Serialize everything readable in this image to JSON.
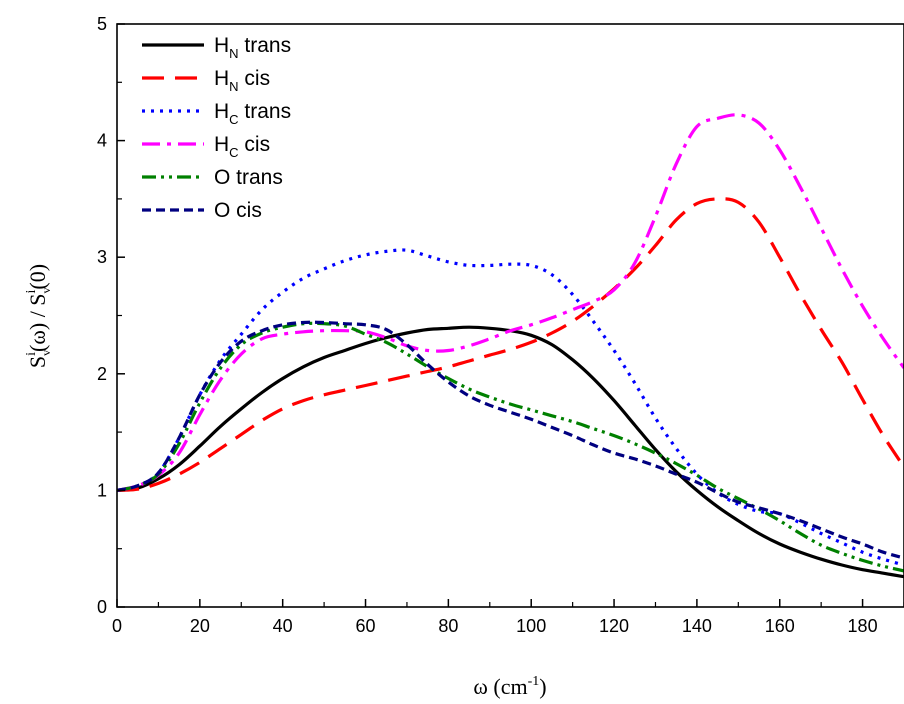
{
  "chart_data": {
    "type": "line",
    "xlabel": {
      "base": "ω (cm",
      "sup": "-1",
      "tail": ")"
    },
    "ylabel": {
      "parts": [
        "S",
        "v",
        "i",
        "(ω) / S",
        "v",
        "i",
        "(0)"
      ]
    },
    "xlim": [
      0,
      190
    ],
    "ylim": [
      0,
      5
    ],
    "xticks": [
      0,
      20,
      40,
      60,
      80,
      100,
      120,
      140,
      160,
      180
    ],
    "yticks": [
      0,
      1,
      2,
      3,
      4,
      5
    ],
    "grid": false,
    "legend_position": "top-left",
    "series": [
      {
        "name": "H_N trans",
        "legend_main": "H",
        "legend_sub": "N",
        "legend_tail": " trans",
        "color": "#000000",
        "dash": "solid",
        "points": [
          [
            0,
            1.0
          ],
          [
            5,
            1.02
          ],
          [
            10,
            1.1
          ],
          [
            15,
            1.22
          ],
          [
            20,
            1.38
          ],
          [
            25,
            1.55
          ],
          [
            30,
            1.7
          ],
          [
            35,
            1.84
          ],
          [
            40,
            1.96
          ],
          [
            45,
            2.06
          ],
          [
            50,
            2.14
          ],
          [
            55,
            2.2
          ],
          [
            60,
            2.26
          ],
          [
            65,
            2.31
          ],
          [
            70,
            2.35
          ],
          [
            75,
            2.38
          ],
          [
            80,
            2.39
          ],
          [
            85,
            2.4
          ],
          [
            90,
            2.39
          ],
          [
            95,
            2.37
          ],
          [
            100,
            2.33
          ],
          [
            105,
            2.25
          ],
          [
            110,
            2.12
          ],
          [
            115,
            1.96
          ],
          [
            120,
            1.77
          ],
          [
            125,
            1.56
          ],
          [
            130,
            1.35
          ],
          [
            135,
            1.16
          ],
          [
            140,
            1.0
          ],
          [
            145,
            0.86
          ],
          [
            150,
            0.74
          ],
          [
            155,
            0.63
          ],
          [
            160,
            0.54
          ],
          [
            165,
            0.47
          ],
          [
            170,
            0.41
          ],
          [
            175,
            0.36
          ],
          [
            180,
            0.32
          ],
          [
            185,
            0.29
          ],
          [
            190,
            0.26
          ]
        ]
      },
      {
        "name": "H_N cis",
        "legend_main": "H",
        "legend_sub": "N",
        "legend_tail": " cis",
        "color": "#ff0000",
        "dash": "dashed",
        "points": [
          [
            0,
            1.0
          ],
          [
            5,
            1.01
          ],
          [
            10,
            1.06
          ],
          [
            15,
            1.14
          ],
          [
            20,
            1.24
          ],
          [
            25,
            1.36
          ],
          [
            30,
            1.48
          ],
          [
            35,
            1.6
          ],
          [
            40,
            1.7
          ],
          [
            45,
            1.77
          ],
          [
            50,
            1.82
          ],
          [
            55,
            1.86
          ],
          [
            60,
            1.9
          ],
          [
            65,
            1.94
          ],
          [
            70,
            1.98
          ],
          [
            75,
            2.02
          ],
          [
            80,
            2.06
          ],
          [
            85,
            2.11
          ],
          [
            90,
            2.16
          ],
          [
            95,
            2.21
          ],
          [
            100,
            2.27
          ],
          [
            105,
            2.35
          ],
          [
            110,
            2.45
          ],
          [
            115,
            2.58
          ],
          [
            120,
            2.73
          ],
          [
            125,
            2.9
          ],
          [
            130,
            3.1
          ],
          [
            135,
            3.32
          ],
          [
            140,
            3.46
          ],
          [
            145,
            3.5
          ],
          [
            150,
            3.47
          ],
          [
            155,
            3.3
          ],
          [
            160,
            3.0
          ],
          [
            165,
            2.68
          ],
          [
            170,
            2.38
          ],
          [
            175,
            2.1
          ],
          [
            180,
            1.78
          ],
          [
            185,
            1.47
          ],
          [
            190,
            1.2
          ]
        ]
      },
      {
        "name": "H_C trans",
        "legend_main": "H",
        "legend_sub": "C",
        "legend_tail": " trans",
        "color": "#0000ff",
        "dash": "dotted",
        "points": [
          [
            0,
            1.0
          ],
          [
            5,
            1.04
          ],
          [
            10,
            1.15
          ],
          [
            15,
            1.45
          ],
          [
            20,
            1.82
          ],
          [
            25,
            2.12
          ],
          [
            30,
            2.34
          ],
          [
            35,
            2.55
          ],
          [
            40,
            2.7
          ],
          [
            45,
            2.82
          ],
          [
            50,
            2.9
          ],
          [
            55,
            2.97
          ],
          [
            60,
            3.02
          ],
          [
            65,
            3.05
          ],
          [
            70,
            3.06
          ],
          [
            75,
            3.01
          ],
          [
            80,
            2.96
          ],
          [
            85,
            2.93
          ],
          [
            90,
            2.93
          ],
          [
            95,
            2.94
          ],
          [
            100,
            2.93
          ],
          [
            105,
            2.85
          ],
          [
            110,
            2.68
          ],
          [
            115,
            2.45
          ],
          [
            120,
            2.2
          ],
          [
            125,
            1.92
          ],
          [
            130,
            1.62
          ],
          [
            135,
            1.36
          ],
          [
            140,
            1.14
          ],
          [
            145,
            0.98
          ],
          [
            150,
            0.88
          ],
          [
            155,
            0.82
          ],
          [
            160,
            0.8
          ],
          [
            165,
            0.72
          ],
          [
            170,
            0.63
          ],
          [
            175,
            0.55
          ],
          [
            180,
            0.47
          ],
          [
            185,
            0.41
          ],
          [
            190,
            0.36
          ]
        ]
      },
      {
        "name": "H_C cis",
        "legend_main": "H",
        "legend_sub": "C",
        "legend_tail": " cis",
        "color": "#ff00ff",
        "dash": "dashdot",
        "points": [
          [
            0,
            1.0
          ],
          [
            5,
            1.04
          ],
          [
            10,
            1.13
          ],
          [
            15,
            1.32
          ],
          [
            20,
            1.65
          ],
          [
            25,
            1.95
          ],
          [
            30,
            2.17
          ],
          [
            35,
            2.3
          ],
          [
            40,
            2.34
          ],
          [
            45,
            2.36
          ],
          [
            50,
            2.37
          ],
          [
            55,
            2.37
          ],
          [
            60,
            2.36
          ],
          [
            65,
            2.31
          ],
          [
            70,
            2.24
          ],
          [
            75,
            2.2
          ],
          [
            80,
            2.2
          ],
          [
            85,
            2.24
          ],
          [
            90,
            2.3
          ],
          [
            95,
            2.37
          ],
          [
            100,
            2.42
          ],
          [
            105,
            2.48
          ],
          [
            110,
            2.55
          ],
          [
            115,
            2.62
          ],
          [
            120,
            2.72
          ],
          [
            125,
            2.95
          ],
          [
            130,
            3.35
          ],
          [
            135,
            3.8
          ],
          [
            140,
            4.12
          ],
          [
            145,
            4.19
          ],
          [
            150,
            4.22
          ],
          [
            155,
            4.15
          ],
          [
            160,
            3.92
          ],
          [
            165,
            3.6
          ],
          [
            170,
            3.25
          ],
          [
            175,
            2.9
          ],
          [
            180,
            2.58
          ],
          [
            185,
            2.3
          ],
          [
            190,
            2.05
          ]
        ]
      },
      {
        "name": "O trans",
        "legend_main": "O trans",
        "legend_sub": "",
        "legend_tail": "",
        "color": "#008000",
        "dash": "dashdotdot",
        "points": [
          [
            0,
            1.0
          ],
          [
            5,
            1.04
          ],
          [
            10,
            1.14
          ],
          [
            15,
            1.4
          ],
          [
            20,
            1.75
          ],
          [
            25,
            2.05
          ],
          [
            30,
            2.25
          ],
          [
            35,
            2.35
          ],
          [
            40,
            2.4
          ],
          [
            45,
            2.43
          ],
          [
            50,
            2.43
          ],
          [
            55,
            2.41
          ],
          [
            60,
            2.34
          ],
          [
            65,
            2.27
          ],
          [
            70,
            2.17
          ],
          [
            75,
            2.06
          ],
          [
            80,
            1.96
          ],
          [
            85,
            1.87
          ],
          [
            90,
            1.8
          ],
          [
            95,
            1.74
          ],
          [
            100,
            1.69
          ],
          [
            105,
            1.64
          ],
          [
            110,
            1.59
          ],
          [
            115,
            1.53
          ],
          [
            120,
            1.47
          ],
          [
            125,
            1.4
          ],
          [
            130,
            1.32
          ],
          [
            135,
            1.23
          ],
          [
            140,
            1.13
          ],
          [
            145,
            1.02
          ],
          [
            150,
            0.93
          ],
          [
            155,
            0.84
          ],
          [
            160,
            0.74
          ],
          [
            165,
            0.63
          ],
          [
            170,
            0.53
          ],
          [
            175,
            0.46
          ],
          [
            180,
            0.4
          ],
          [
            185,
            0.35
          ],
          [
            190,
            0.31
          ]
        ]
      },
      {
        "name": "O cis",
        "legend_main": "O cis",
        "legend_sub": "",
        "legend_tail": "",
        "color": "#000080",
        "dash": "shortdash",
        "points": [
          [
            0,
            1.0
          ],
          [
            5,
            1.04
          ],
          [
            10,
            1.15
          ],
          [
            15,
            1.45
          ],
          [
            20,
            1.82
          ],
          [
            25,
            2.1
          ],
          [
            30,
            2.28
          ],
          [
            35,
            2.37
          ],
          [
            40,
            2.42
          ],
          [
            45,
            2.44
          ],
          [
            50,
            2.44
          ],
          [
            55,
            2.43
          ],
          [
            60,
            2.42
          ],
          [
            65,
            2.38
          ],
          [
            70,
            2.25
          ],
          [
            75,
            2.08
          ],
          [
            80,
            1.93
          ],
          [
            85,
            1.81
          ],
          [
            90,
            1.73
          ],
          [
            95,
            1.67
          ],
          [
            100,
            1.61
          ],
          [
            105,
            1.54
          ],
          [
            110,
            1.47
          ],
          [
            115,
            1.39
          ],
          [
            120,
            1.32
          ],
          [
            125,
            1.27
          ],
          [
            130,
            1.21
          ],
          [
            135,
            1.14
          ],
          [
            140,
            1.07
          ],
          [
            145,
            0.98
          ],
          [
            150,
            0.9
          ],
          [
            155,
            0.85
          ],
          [
            160,
            0.8
          ],
          [
            165,
            0.74
          ],
          [
            170,
            0.67
          ],
          [
            175,
            0.6
          ],
          [
            180,
            0.54
          ],
          [
            185,
            0.47
          ],
          [
            190,
            0.42
          ]
        ]
      }
    ]
  }
}
